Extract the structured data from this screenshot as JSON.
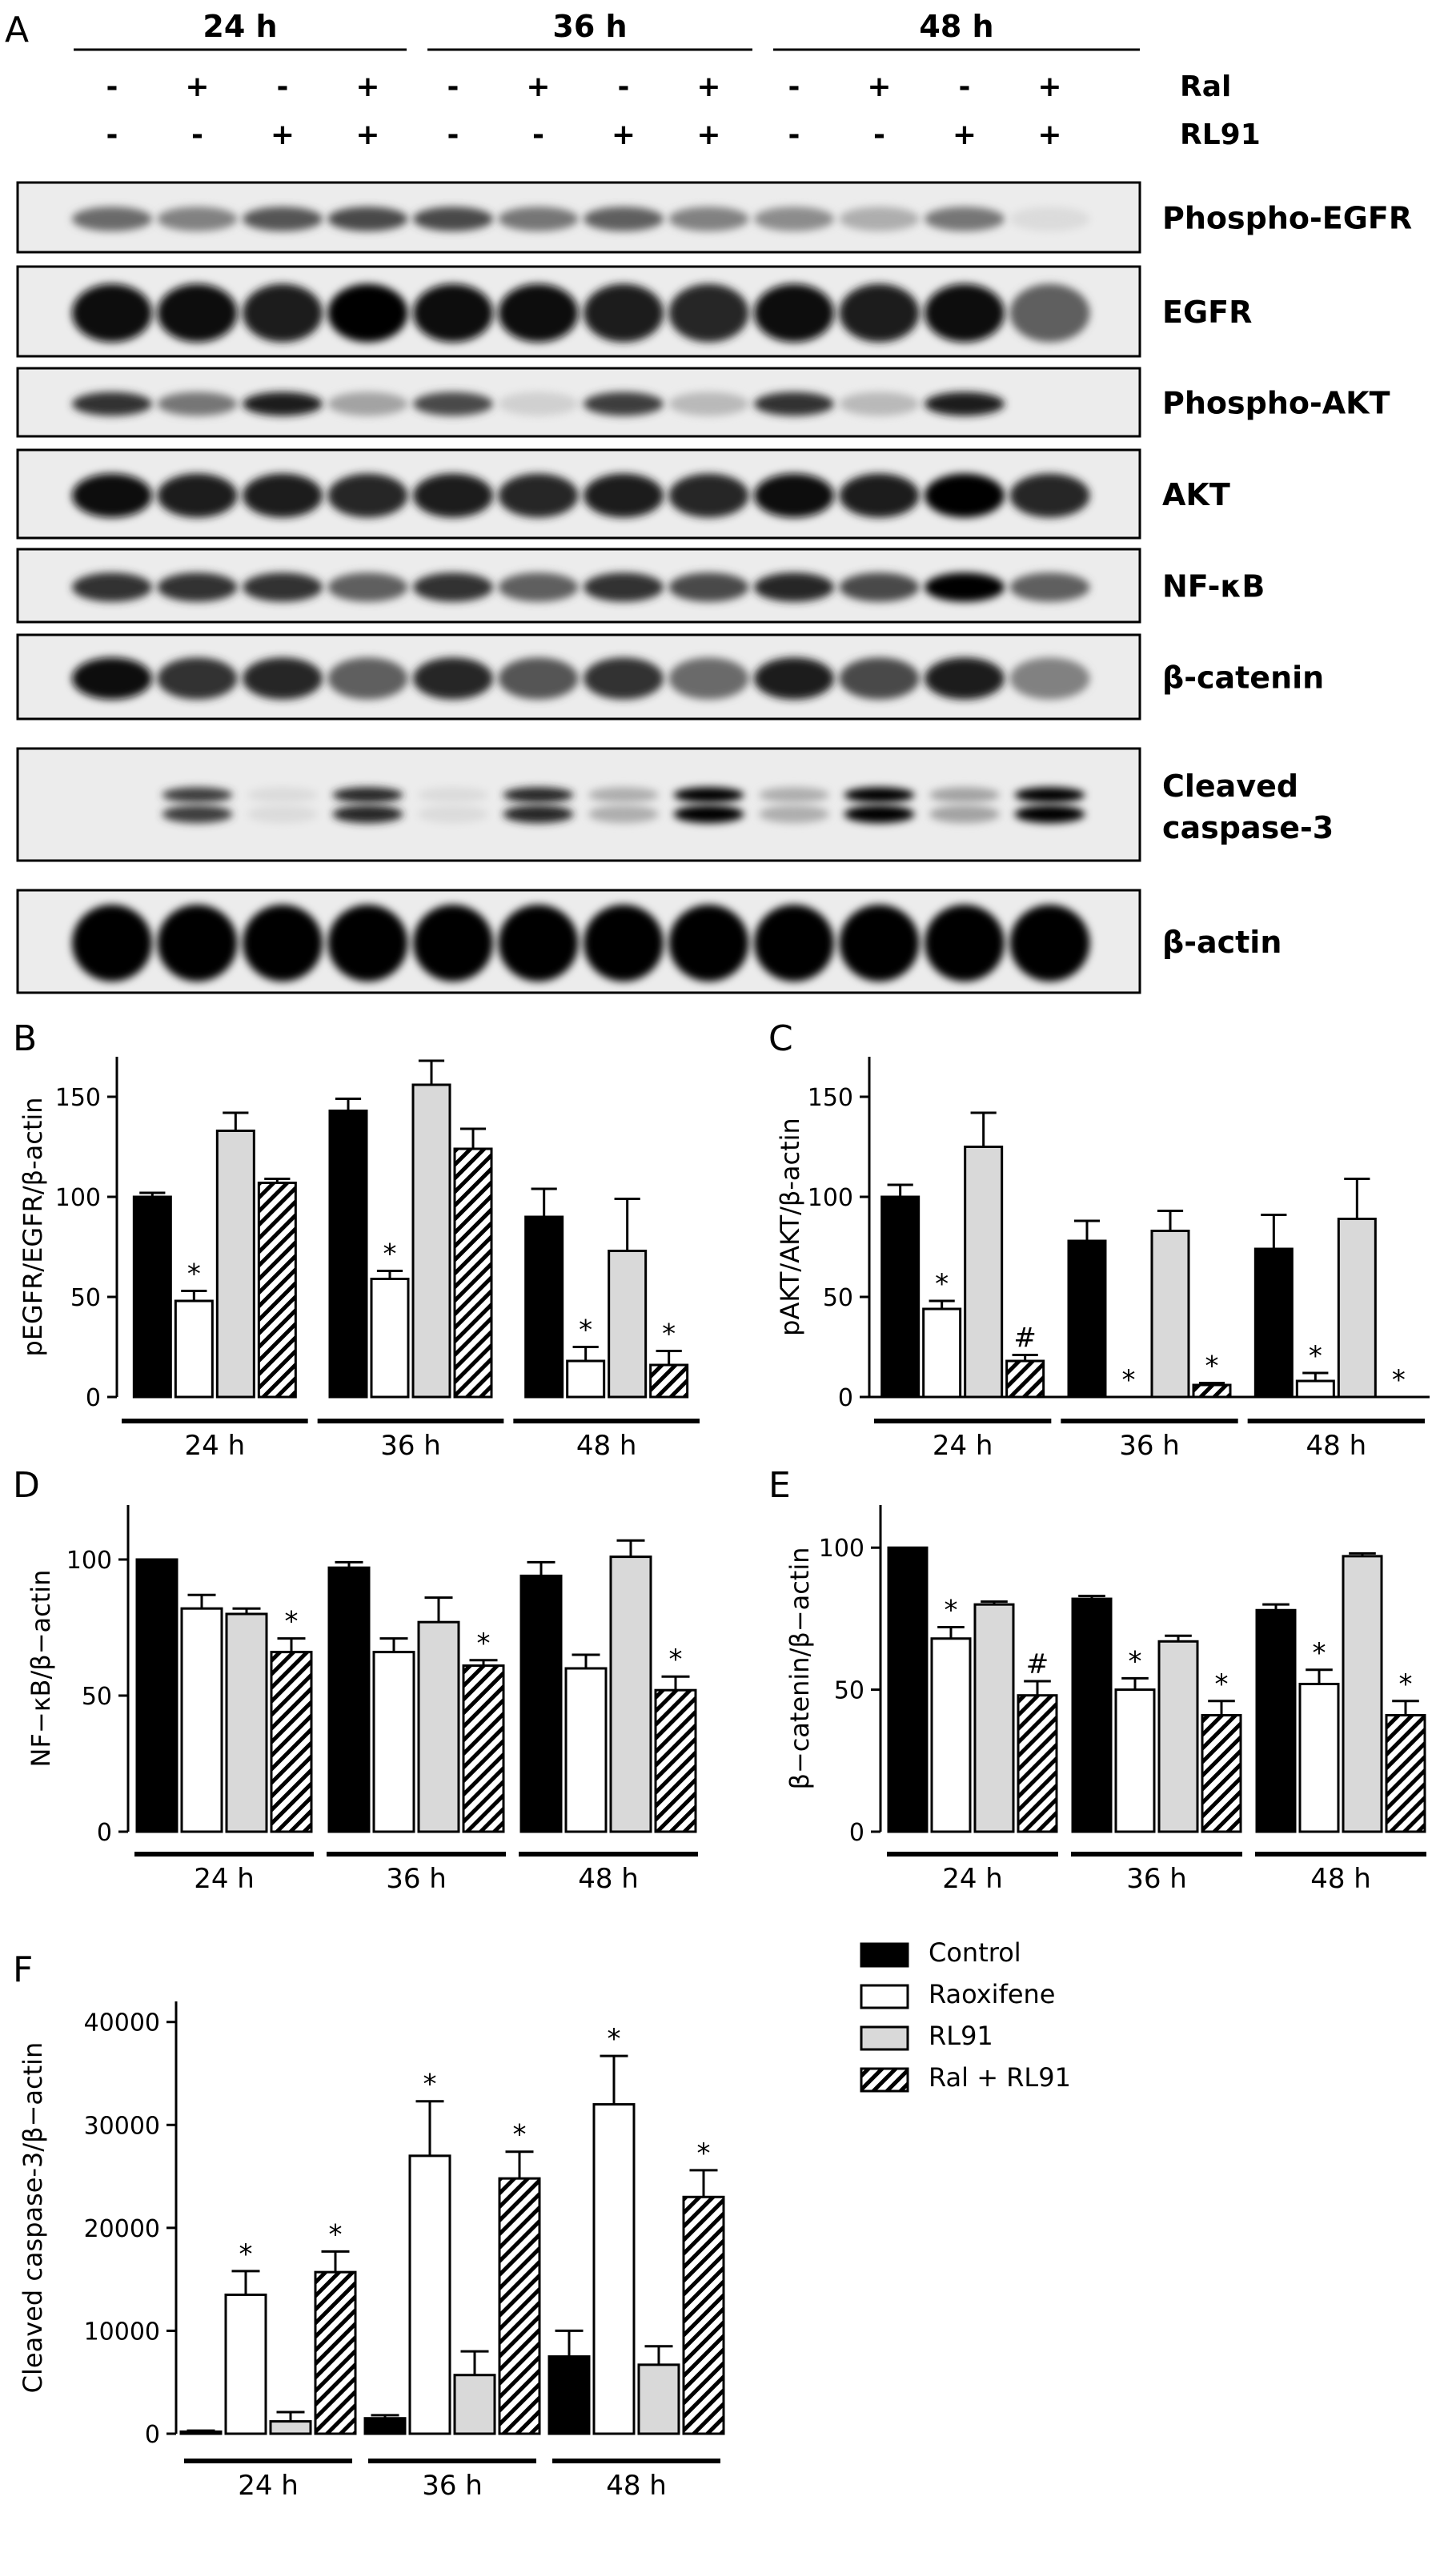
{
  "western_blot": {
    "panel_letter": "A",
    "time_groups": [
      "24 h",
      "36 h",
      "48 h"
    ],
    "treatment_rows": [
      {
        "label": "Ral",
        "signs": [
          "-",
          "+",
          "-",
          "+",
          "-",
          "+",
          "-",
          "+",
          "-",
          "+",
          "-",
          "+"
        ]
      },
      {
        "label": "RL91",
        "signs": [
          "-",
          "-",
          "+",
          "+",
          "-",
          "-",
          "+",
          "+",
          "-",
          "-",
          "+",
          "+"
        ]
      }
    ],
    "blots": [
      {
        "label": "Phospho-EGFR",
        "intensity": [
          0.55,
          0.45,
          0.65,
          0.7,
          0.7,
          0.5,
          0.6,
          0.45,
          0.4,
          0.25,
          0.5,
          0.05
        ],
        "thickness": 0.35
      },
      {
        "label": "EGFR",
        "intensity": [
          0.95,
          0.95,
          0.9,
          1.0,
          0.95,
          0.95,
          0.9,
          0.85,
          0.95,
          0.9,
          0.95,
          0.6
        ],
        "thickness": 0.65
      },
      {
        "label": "Phospho-AKT",
        "intensity": [
          0.8,
          0.5,
          0.9,
          0.3,
          0.7,
          0.1,
          0.75,
          0.2,
          0.8,
          0.2,
          0.9,
          0.0
        ],
        "thickness": 0.35
      },
      {
        "label": "AKT",
        "intensity": [
          0.95,
          0.9,
          0.9,
          0.85,
          0.9,
          0.85,
          0.9,
          0.85,
          0.95,
          0.9,
          1.0,
          0.85
        ],
        "thickness": 0.5
      },
      {
        "label": "NF-κB",
        "intensity": [
          0.8,
          0.8,
          0.8,
          0.6,
          0.8,
          0.6,
          0.8,
          0.7,
          0.85,
          0.7,
          1.0,
          0.6
        ],
        "thickness": 0.4
      },
      {
        "label": "β-catenin",
        "intensity": [
          0.95,
          0.8,
          0.85,
          0.6,
          0.85,
          0.65,
          0.8,
          0.55,
          0.9,
          0.7,
          0.9,
          0.45
        ],
        "thickness": 0.5
      },
      {
        "label": "Cleaved caspase-3",
        "label_lines": [
          "Cleaved",
          "caspase-3"
        ],
        "intensity": [
          0.0,
          0.75,
          0.05,
          0.85,
          0.05,
          0.85,
          0.25,
          1.0,
          0.25,
          1.0,
          0.3,
          1.0
        ],
        "thickness": 0.4,
        "double_band": true
      },
      {
        "label": "β-actin",
        "intensity": [
          1,
          1,
          1,
          1,
          1,
          1,
          1,
          1,
          1,
          1,
          1,
          1
        ],
        "thickness": 0.75
      }
    ]
  },
  "legend": {
    "items": [
      {
        "label": "Control",
        "pattern": "black"
      },
      {
        "label": "Raoxifene",
        "pattern": "white"
      },
      {
        "label": "RL91",
        "pattern": "gray"
      },
      {
        "label": "Ral + RL91",
        "pattern": "hatched"
      }
    ]
  },
  "colors": {
    "control": "#000000",
    "raloxifene": "#ffffff",
    "rl91": "#d9d9d9",
    "hatch": "#000000"
  },
  "chart_data": [
    {
      "panel": "B",
      "type": "bar",
      "ylabel": "pEGFR/EGFR/β-actin",
      "categories": [
        "24 h",
        "36 h",
        "48 h"
      ],
      "ylim": [
        0,
        170
      ],
      "yticks": [
        0,
        50,
        100,
        150
      ],
      "series": [
        {
          "name": "Control",
          "values": [
            100,
            143,
            90
          ],
          "errors": [
            2,
            6,
            14
          ],
          "marks": [
            "",
            "",
            ""
          ]
        },
        {
          "name": "Raoxifene",
          "values": [
            48,
            59,
            18
          ],
          "errors": [
            5,
            4,
            7
          ],
          "marks": [
            "*",
            "*",
            "*"
          ]
        },
        {
          "name": "RL91",
          "values": [
            133,
            156,
            73
          ],
          "errors": [
            9,
            12,
            26
          ],
          "marks": [
            "",
            "",
            ""
          ]
        },
        {
          "name": "Ral + RL91",
          "values": [
            107,
            124,
            16
          ],
          "errors": [
            2,
            10,
            7
          ],
          "marks": [
            "",
            "",
            "*"
          ]
        }
      ]
    },
    {
      "panel": "C",
      "type": "bar",
      "ylabel": "pAKT/AKT/β-actin",
      "categories": [
        "24 h",
        "36 h",
        "48 h"
      ],
      "ylim": [
        0,
        170
      ],
      "yticks": [
        0,
        50,
        100,
        150
      ],
      "series": [
        {
          "name": "Control",
          "values": [
            100,
            78,
            74
          ],
          "errors": [
            6,
            10,
            17
          ],
          "marks": [
            "",
            "",
            ""
          ]
        },
        {
          "name": "Raoxifene",
          "values": [
            44,
            0,
            8
          ],
          "errors": [
            4,
            0,
            4
          ],
          "marks": [
            "*",
            "*",
            "*"
          ]
        },
        {
          "name": "RL91",
          "values": [
            125,
            83,
            89
          ],
          "errors": [
            17,
            10,
            20
          ],
          "marks": [
            "",
            "",
            ""
          ]
        },
        {
          "name": "Ral + RL91",
          "values": [
            18,
            6,
            0
          ],
          "errors": [
            3,
            1,
            0
          ],
          "marks": [
            "#",
            "*",
            "*"
          ]
        }
      ]
    },
    {
      "panel": "D",
      "type": "bar",
      "ylabel": "NF−κB/β−actin",
      "categories": [
        "24 h",
        "36 h",
        "48 h"
      ],
      "ylim": [
        0,
        120
      ],
      "yticks": [
        0,
        50,
        100
      ],
      "series": [
        {
          "name": "Control",
          "values": [
            100,
            97,
            94
          ],
          "errors": [
            0,
            2,
            5
          ],
          "marks": [
            "",
            "",
            ""
          ]
        },
        {
          "name": "Raoxifene",
          "values": [
            82,
            66,
            60
          ],
          "errors": [
            5,
            5,
            5
          ],
          "marks": [
            "",
            "",
            ""
          ]
        },
        {
          "name": "RL91",
          "values": [
            80,
            77,
            101
          ],
          "errors": [
            2,
            9,
            6
          ],
          "marks": [
            "",
            "",
            ""
          ]
        },
        {
          "name": "Ral + RL91",
          "values": [
            66,
            61,
            52
          ],
          "errors": [
            5,
            2,
            5
          ],
          "marks": [
            "*",
            "*",
            "*"
          ]
        }
      ]
    },
    {
      "panel": "E",
      "type": "bar",
      "ylabel": "β−catenin/β−actin",
      "categories": [
        "24 h",
        "36 h",
        "48 h"
      ],
      "ylim": [
        0,
        115
      ],
      "yticks": [
        0,
        50,
        100
      ],
      "series": [
        {
          "name": "Control",
          "values": [
            100,
            82,
            78
          ],
          "errors": [
            0,
            1,
            2
          ],
          "marks": [
            "",
            "",
            ""
          ]
        },
        {
          "name": "Raoxifene",
          "values": [
            68,
            50,
            52
          ],
          "errors": [
            4,
            4,
            5
          ],
          "marks": [
            "*",
            "*",
            "*"
          ]
        },
        {
          "name": "RL91",
          "values": [
            80,
            67,
            97
          ],
          "errors": [
            1,
            2,
            1
          ],
          "marks": [
            "",
            "",
            ""
          ]
        },
        {
          "name": "Ral + RL91",
          "values": [
            48,
            41,
            41
          ],
          "errors": [
            5,
            5,
            5
          ],
          "marks": [
            "#",
            "*",
            "*"
          ]
        }
      ]
    },
    {
      "panel": "F",
      "type": "bar",
      "ylabel": "Cleaved caspase-3/β−actin",
      "categories": [
        "24 h",
        "36 h",
        "48 h"
      ],
      "ylim": [
        0,
        42000
      ],
      "yticks": [
        0,
        10000,
        20000,
        30000,
        40000
      ],
      "series": [
        {
          "name": "Control",
          "values": [
            200,
            1500,
            7500
          ],
          "errors": [
            100,
            300,
            2500
          ],
          "marks": [
            "",
            "",
            ""
          ]
        },
        {
          "name": "Raoxifene",
          "values": [
            13500,
            27000,
            32000
          ],
          "errors": [
            2300,
            5300,
            4700
          ],
          "marks": [
            "*",
            "*",
            "*"
          ]
        },
        {
          "name": "RL91",
          "values": [
            1200,
            5700,
            6700
          ],
          "errors": [
            900,
            2300,
            1800
          ],
          "marks": [
            "",
            "",
            ""
          ]
        },
        {
          "name": "Ral + RL91",
          "values": [
            15700,
            24800,
            23000
          ],
          "errors": [
            2000,
            2600,
            2600
          ],
          "marks": [
            "*",
            "*",
            "*"
          ]
        }
      ]
    }
  ]
}
